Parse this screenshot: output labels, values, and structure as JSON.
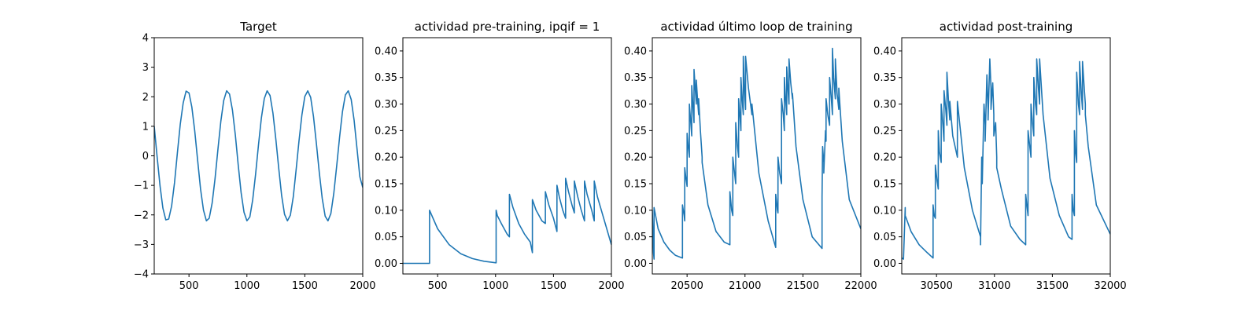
{
  "colors": {
    "series": "#1f77b4",
    "axes": "#000000",
    "background": "#ffffff"
  },
  "chart_data": [
    {
      "type": "line",
      "title": "Target",
      "xlabel": "",
      "ylabel": "",
      "xlim": [
        200,
        2000
      ],
      "ylim": [
        -4,
        4
      ],
      "xticks": [
        500,
        1000,
        1500,
        2000
      ],
      "xtick_labels": [
        "500",
        "1000",
        "1500",
        "2000"
      ],
      "yticks": [
        -4,
        -3,
        -2,
        -1,
        0,
        1,
        2,
        3,
        4
      ],
      "ytick_labels": [
        "−4",
        "−3",
        "−2",
        "−1",
        "0",
        "1",
        "2",
        "3",
        "4"
      ],
      "grid": false,
      "series": [
        {
          "x": [
            200,
            225,
            250,
            275,
            300,
            325,
            350,
            375,
            400,
            425,
            450,
            475,
            500,
            525,
            550,
            575,
            600,
            625,
            650,
            675,
            700,
            725,
            750,
            775,
            800,
            825,
            850,
            875,
            900,
            925,
            950,
            975,
            1000,
            1025,
            1050,
            1075,
            1100,
            1125,
            1150,
            1175,
            1200,
            1225,
            1250,
            1275,
            1300,
            1325,
            1350,
            1375,
            1400,
            1425,
            1450,
            1475,
            1500,
            1525,
            1550,
            1575,
            1600,
            1625,
            1650,
            1675,
            1700,
            1725,
            1750,
            1775,
            1800,
            1825,
            1850,
            1875,
            1900,
            1925,
            1950,
            1975,
            2000
          ],
          "y": [
            1.0,
            -0.04,
            -1.02,
            -1.77,
            -2.17,
            -2.14,
            -1.7,
            -0.91,
            0.09,
            1.07,
            1.79,
            2.19,
            2.13,
            1.65,
            0.84,
            -0.16,
            -1.13,
            -1.84,
            -2.2,
            -2.11,
            -1.6,
            -0.77,
            0.23,
            1.18,
            1.87,
            2.2,
            2.09,
            1.55,
            0.7,
            -0.3,
            -1.24,
            -1.91,
            -2.2,
            -2.07,
            -1.5,
            -0.63,
            0.37,
            1.29,
            1.94,
            2.2,
            2.04,
            1.44,
            0.55,
            -0.44,
            -1.34,
            -1.98,
            -2.2,
            -2.01,
            -1.39,
            -0.48,
            0.51,
            1.39,
            2.01,
            2.2,
            1.98,
            1.33,
            0.41,
            -0.57,
            -1.44,
            -2.04,
            -2.2,
            -1.95,
            -1.27,
            -0.34,
            0.64,
            1.49,
            2.06,
            2.2,
            1.91,
            1.21,
            0.27,
            -0.71,
            -1.07
          ]
        }
      ]
    },
    {
      "type": "line",
      "title": "actividad pre-training, ipqif = 1",
      "xlabel": "",
      "ylabel": "",
      "xlim": [
        200,
        2000
      ],
      "ylim": [
        -0.02,
        0.425
      ],
      "xticks": [
        500,
        1000,
        1500,
        2000
      ],
      "xtick_labels": [
        "500",
        "1000",
        "1500",
        "2000"
      ],
      "yticks": [
        0.0,
        0.05,
        0.1,
        0.15,
        0.2,
        0.25,
        0.3,
        0.35,
        0.4
      ],
      "ytick_labels": [
        "0.00",
        "0.05",
        "0.10",
        "0.15",
        "0.20",
        "0.25",
        "0.30",
        "0.35",
        "0.40"
      ],
      "grid": false,
      "series": [
        {
          "x": [
            200,
            430,
            430,
            450,
            500,
            600,
            700,
            800,
            900,
            1005,
            1005,
            1015,
            1050,
            1100,
            1120,
            1120,
            1150,
            1200,
            1250,
            1300,
            1318,
            1318,
            1350,
            1400,
            1430,
            1430,
            1460,
            1500,
            1530,
            1530,
            1550,
            1580,
            1605,
            1605,
            1630,
            1660,
            1680,
            1680,
            1710,
            1740,
            1768,
            1768,
            1790,
            1830,
            1852,
            1852,
            1880,
            1920,
            2000
          ],
          "y": [
            0.0,
            0.0,
            0.1,
            0.09,
            0.065,
            0.035,
            0.018,
            0.009,
            0.004,
            0.001,
            0.1,
            0.09,
            0.075,
            0.055,
            0.05,
            0.13,
            0.105,
            0.075,
            0.055,
            0.04,
            0.02,
            0.12,
            0.1,
            0.08,
            0.075,
            0.135,
            0.11,
            0.085,
            0.06,
            0.147,
            0.125,
            0.1,
            0.085,
            0.16,
            0.135,
            0.11,
            0.095,
            0.155,
            0.125,
            0.1,
            0.08,
            0.155,
            0.13,
            0.1,
            0.08,
            0.155,
            0.125,
            0.095,
            0.035
          ]
        }
      ]
    },
    {
      "type": "line",
      "title": "actividad último loop de training",
      "xlabel": "",
      "ylabel": "",
      "xlim": [
        20200,
        22000
      ],
      "ylim": [
        -0.02,
        0.425
      ],
      "xticks": [
        20500,
        21000,
        21500,
        22000
      ],
      "xtick_labels": [
        "20500",
        "21000",
        "21500",
        "22000"
      ],
      "yticks": [
        0.0,
        0.05,
        0.1,
        0.15,
        0.2,
        0.25,
        0.3,
        0.35,
        0.4
      ],
      "ytick_labels": [
        "0.00",
        "0.05",
        "0.10",
        "0.15",
        "0.20",
        "0.25",
        "0.30",
        "0.35",
        "0.40"
      ],
      "grid": false,
      "series": [
        {
          "x": [
            20200,
            20210,
            20215,
            20215,
            20250,
            20300,
            20350,
            20400,
            20460,
            20460,
            20475,
            20480,
            20480,
            20490,
            20500,
            20500,
            20510,
            20520,
            20520,
            20530,
            20540,
            20540,
            20550,
            20560,
            20560,
            20570,
            20580,
            20580,
            20590,
            20600,
            20600,
            20615,
            20630,
            20630,
            20680,
            20750,
            20820,
            20870,
            20870,
            20885,
            20895,
            20895,
            20910,
            20920,
            20920,
            20935,
            20945,
            20945,
            20955,
            20965,
            20965,
            20975,
            20985,
            20985,
            20995,
            21005,
            21005,
            21030,
            21060,
            21060,
            21120,
            21200,
            21265,
            21265,
            21280,
            21285,
            21285,
            21300,
            21315,
            21315,
            21330,
            21340,
            21340,
            21350,
            21360,
            21360,
            21370,
            21380,
            21380,
            21395,
            21410,
            21410,
            21440,
            21500,
            21580,
            21665,
            21665,
            21670,
            21680,
            21680,
            21695,
            21700,
            21700,
            21715,
            21730,
            21730,
            21745,
            21755,
            21755,
            21765,
            21780,
            21780,
            21795,
            21810,
            21810,
            21840,
            21900,
            22000
          ],
          "y": [
            0.1,
            0.02,
            0.008,
            0.105,
            0.065,
            0.04,
            0.025,
            0.015,
            0.01,
            0.11,
            0.09,
            0.08,
            0.18,
            0.16,
            0.145,
            0.245,
            0.22,
            0.2,
            0.3,
            0.27,
            0.24,
            0.335,
            0.3,
            0.265,
            0.365,
            0.33,
            0.3,
            0.345,
            0.31,
            0.28,
            0.31,
            0.25,
            0.2,
            0.19,
            0.11,
            0.06,
            0.04,
            0.035,
            0.135,
            0.1,
            0.09,
            0.2,
            0.17,
            0.15,
            0.265,
            0.22,
            0.2,
            0.31,
            0.28,
            0.25,
            0.35,
            0.31,
            0.28,
            0.39,
            0.33,
            0.29,
            0.39,
            0.33,
            0.28,
            0.3,
            0.17,
            0.08,
            0.03,
            0.13,
            0.1,
            0.095,
            0.2,
            0.17,
            0.15,
            0.31,
            0.28,
            0.25,
            0.35,
            0.31,
            0.28,
            0.37,
            0.33,
            0.3,
            0.385,
            0.34,
            0.31,
            0.32,
            0.22,
            0.12,
            0.05,
            0.028,
            0.125,
            0.22,
            0.19,
            0.17,
            0.25,
            0.23,
            0.31,
            0.28,
            0.26,
            0.35,
            0.31,
            0.28,
            0.405,
            0.35,
            0.31,
            0.385,
            0.32,
            0.29,
            0.33,
            0.23,
            0.12,
            0.065
          ]
        }
      ]
    },
    {
      "type": "line",
      "title": "actividad post-training",
      "xlabel": "",
      "ylabel": "",
      "xlim": [
        30200,
        32000
      ],
      "ylim": [
        -0.02,
        0.425
      ],
      "xticks": [
        30500,
        31000,
        31500,
        32000
      ],
      "xtick_labels": [
        "30500",
        "31000",
        "31500",
        "32000"
      ],
      "yticks": [
        0.0,
        0.05,
        0.1,
        0.15,
        0.2,
        0.25,
        0.3,
        0.35,
        0.4
      ],
      "ytick_labels": [
        "0.00",
        "0.05",
        "0.10",
        "0.15",
        "0.20",
        "0.25",
        "0.30",
        "0.35",
        "0.40"
      ],
      "grid": false,
      "series": [
        {
          "x": [
            30200,
            30215,
            30230,
            30230,
            30280,
            30350,
            30420,
            30470,
            30470,
            30480,
            30490,
            30490,
            30505,
            30515,
            30515,
            30525,
            30540,
            30540,
            30555,
            30565,
            30565,
            30580,
            30590,
            30590,
            30605,
            30615,
            30615,
            30640,
            30680,
            30680,
            30740,
            30810,
            30880,
            30880,
            30890,
            30895,
            30895,
            30910,
            30920,
            30920,
            30935,
            30945,
            30945,
            30960,
            30970,
            30970,
            30985,
            30995,
            30995,
            31010,
            31020,
            31020,
            31060,
            31140,
            31220,
            31270,
            31270,
            31285,
            31290,
            31290,
            31305,
            31315,
            31315,
            31330,
            31340,
            31340,
            31355,
            31365,
            31365,
            31380,
            31390,
            31390,
            31420,
            31480,
            31560,
            31640,
            31670,
            31670,
            31680,
            31690,
            31690,
            31700,
            31710,
            31710,
            31725,
            31735,
            31735,
            31750,
            31760,
            31760,
            31775,
            31785,
            31785,
            31810,
            31880,
            32000
          ],
          "y": [
            0.01,
            0.008,
            0.105,
            0.09,
            0.06,
            0.035,
            0.02,
            0.01,
            0.11,
            0.09,
            0.085,
            0.185,
            0.155,
            0.14,
            0.25,
            0.21,
            0.19,
            0.3,
            0.26,
            0.23,
            0.325,
            0.29,
            0.26,
            0.36,
            0.3,
            0.27,
            0.305,
            0.24,
            0.2,
            0.305,
            0.18,
            0.1,
            0.05,
            0.035,
            0.2,
            0.17,
            0.15,
            0.3,
            0.26,
            0.23,
            0.355,
            0.29,
            0.27,
            0.385,
            0.33,
            0.29,
            0.34,
            0.28,
            0.24,
            0.265,
            0.2,
            0.18,
            0.14,
            0.07,
            0.045,
            0.035,
            0.13,
            0.1,
            0.09,
            0.25,
            0.22,
            0.2,
            0.3,
            0.26,
            0.24,
            0.35,
            0.3,
            0.28,
            0.385,
            0.33,
            0.3,
            0.385,
            0.28,
            0.16,
            0.09,
            0.05,
            0.045,
            0.13,
            0.1,
            0.09,
            0.25,
            0.21,
            0.19,
            0.36,
            0.3,
            0.28,
            0.38,
            0.32,
            0.29,
            0.38,
            0.33,
            0.3,
            0.28,
            0.22,
            0.11,
            0.055
          ]
        }
      ]
    }
  ]
}
